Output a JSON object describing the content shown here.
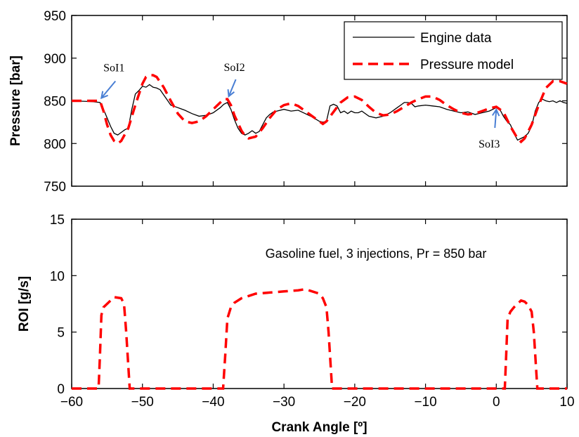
{
  "chart_data": [
    {
      "type": "line",
      "ylabel": "Pressure [bar]",
      "xlim": [
        -60,
        10
      ],
      "ylim": [
        750,
        950
      ],
      "yticks": [
        750,
        800,
        850,
        900,
        950
      ],
      "legend": {
        "placement": "top-right",
        "entries": [
          "Engine data",
          "Pressure model"
        ]
      },
      "annotations": [
        {
          "text": "SoI1",
          "x": -56,
          "y": 850
        },
        {
          "text": "SoI2",
          "x": -38,
          "y": 852
        },
        {
          "text": "SoI3",
          "x": 0,
          "y": 843
        }
      ],
      "series": [
        {
          "name": "Engine data",
          "color": "#000000",
          "style": "solid",
          "x": [
            -60,
            -57,
            -56,
            -55.5,
            -55,
            -54.5,
            -54,
            -53.5,
            -53,
            -52.5,
            -52,
            -51.5,
            -51,
            -50.5,
            -50,
            -49.5,
            -49,
            -48.5,
            -48,
            -47.5,
            -47,
            -46.5,
            -46,
            -45,
            -44,
            -43,
            -42,
            -41,
            -40,
            -39,
            -38.5,
            -38,
            -37.5,
            -37,
            -36.5,
            -36,
            -35.5,
            -35,
            -34.5,
            -34,
            -33.5,
            -33,
            -32.5,
            -32,
            -31.5,
            -31,
            -30,
            -29,
            -28,
            -27,
            -26,
            -25,
            -24.5,
            -24,
            -23.5,
            -23,
            -22.5,
            -22,
            -21.5,
            -21,
            -20.5,
            -20,
            -19.5,
            -19,
            -18,
            -17,
            -16,
            -15,
            -14,
            -13.5,
            -13,
            -12.5,
            -12,
            -11.5,
            -11,
            -10,
            -9,
            -8,
            -7,
            -6,
            -5,
            -4,
            -3,
            -2,
            -1,
            0,
            0.5,
            1,
            1.5,
            2,
            2.5,
            3,
            3.5,
            4,
            4.5,
            5,
            5.5,
            6,
            6.5,
            7,
            7.5,
            8,
            8.5,
            9,
            9.5,
            10
          ],
          "values": [
            850,
            849,
            848,
            840,
            830,
            820,
            812,
            810,
            813,
            816,
            818,
            840,
            858,
            862,
            867,
            866,
            869,
            866,
            865,
            863,
            857,
            851,
            845,
            842,
            839,
            835,
            832,
            833,
            836,
            842,
            846,
            848,
            840,
            828,
            818,
            812,
            810,
            812,
            815,
            812,
            814,
            822,
            830,
            834,
            837,
            838,
            840,
            838,
            839,
            835,
            831,
            826,
            825,
            826,
            844,
            846,
            844,
            836,
            838,
            835,
            838,
            836,
            836,
            838,
            832,
            830,
            832,
            836,
            842,
            845,
            848,
            848,
            847,
            843,
            844,
            845,
            844,
            843,
            840,
            838,
            836,
            837,
            834,
            836,
            838,
            842,
            840,
            832,
            826,
            822,
            812,
            804,
            806,
            808,
            812,
            820,
            838,
            848,
            852,
            850,
            849,
            850,
            848,
            850,
            848,
            847
          ]
        },
        {
          "name": "Pressure model",
          "color": "#ff0000",
          "style": "dashed",
          "x": [
            -60,
            -57,
            -56,
            -55.5,
            -55,
            -54.5,
            -54,
            -53.5,
            -53,
            -52,
            -51,
            -50,
            -49.5,
            -49,
            -48.5,
            -48,
            -47,
            -46,
            -45,
            -44,
            -43,
            -42,
            -41,
            -40,
            -39,
            -38.5,
            -38,
            -37.5,
            -37,
            -36,
            -35.5,
            -35,
            -34,
            -33,
            -32,
            -31,
            -30,
            -29,
            -28,
            -27,
            -26,
            -25,
            -24.5,
            -24,
            -23,
            -22,
            -21,
            -20,
            -19,
            -18,
            -17,
            -16,
            -15,
            -14,
            -13,
            -12,
            -11,
            -10,
            -9,
            -8,
            -7,
            -6,
            -5,
            -4,
            -3,
            -2,
            -1,
            0,
            1,
            2,
            3,
            3.5,
            4,
            5,
            6,
            7,
            8,
            9,
            10
          ],
          "values": [
            850,
            850,
            850,
            838,
            822,
            810,
            803,
            800,
            803,
            818,
            845,
            870,
            878,
            880,
            880,
            878,
            866,
            850,
            835,
            826,
            824,
            826,
            832,
            840,
            848,
            852,
            852,
            845,
            833,
            815,
            809,
            806,
            808,
            818,
            830,
            840,
            845,
            847,
            844,
            838,
            832,
            826,
            823,
            826,
            837,
            848,
            854,
            855,
            851,
            843,
            836,
            833,
            834,
            838,
            843,
            848,
            852,
            855,
            855,
            851,
            845,
            840,
            836,
            834,
            835,
            838,
            841,
            843,
            837,
            820,
            806,
            802,
            806,
            822,
            845,
            865,
            873,
            873,
            870
          ]
        }
      ]
    },
    {
      "type": "line",
      "xlabel": "Crank Angle [º]",
      "ylabel": "ROI [g/s]",
      "xlim": [
        -60,
        10
      ],
      "ylim": [
        0,
        15
      ],
      "xticks": [
        -60,
        -50,
        -40,
        -30,
        -20,
        -10,
        0,
        10
      ],
      "xtick_labels": [
        "−60",
        "−50",
        "−40",
        "−30",
        "−20",
        "−10",
        "0",
        "10"
      ],
      "yticks": [
        0,
        5,
        10,
        15
      ],
      "note": "Gasoline fuel, 3 injections, Pr = 850 bar",
      "series": [
        {
          "color": "#ff0000",
          "style": "dashed",
          "x": [
            -60,
            -56.2,
            -56,
            -55.8,
            -55.5,
            -55,
            -54.5,
            -54,
            -53,
            -52.6,
            -52.3,
            -52,
            -51.8,
            -38.6,
            -38.3,
            -38,
            -37.5,
            -37,
            -36,
            -35,
            -34,
            -32,
            -30,
            -28,
            -27,
            -26,
            -25,
            -24.5,
            -24,
            -23.7,
            -23.4,
            -23.2,
            1.2,
            1.4,
            1.6,
            2,
            2.5,
            3,
            3.5,
            4,
            4.5,
            5,
            5.3,
            5.6,
            5.8,
            10
          ],
          "values": [
            0,
            0,
            3,
            6.5,
            7.2,
            7.5,
            7.8,
            8.1,
            8,
            7.5,
            5,
            2,
            0,
            0,
            3,
            6.2,
            7.2,
            7.6,
            8.0,
            8.2,
            8.4,
            8.5,
            8.6,
            8.7,
            8.8,
            8.6,
            8.4,
            8.0,
            7.2,
            5,
            2,
            0,
            0,
            3,
            6.2,
            6.8,
            7.2,
            7.5,
            7.8,
            7.7,
            7.4,
            6.8,
            5,
            2,
            0,
            0
          ]
        }
      ]
    }
  ]
}
